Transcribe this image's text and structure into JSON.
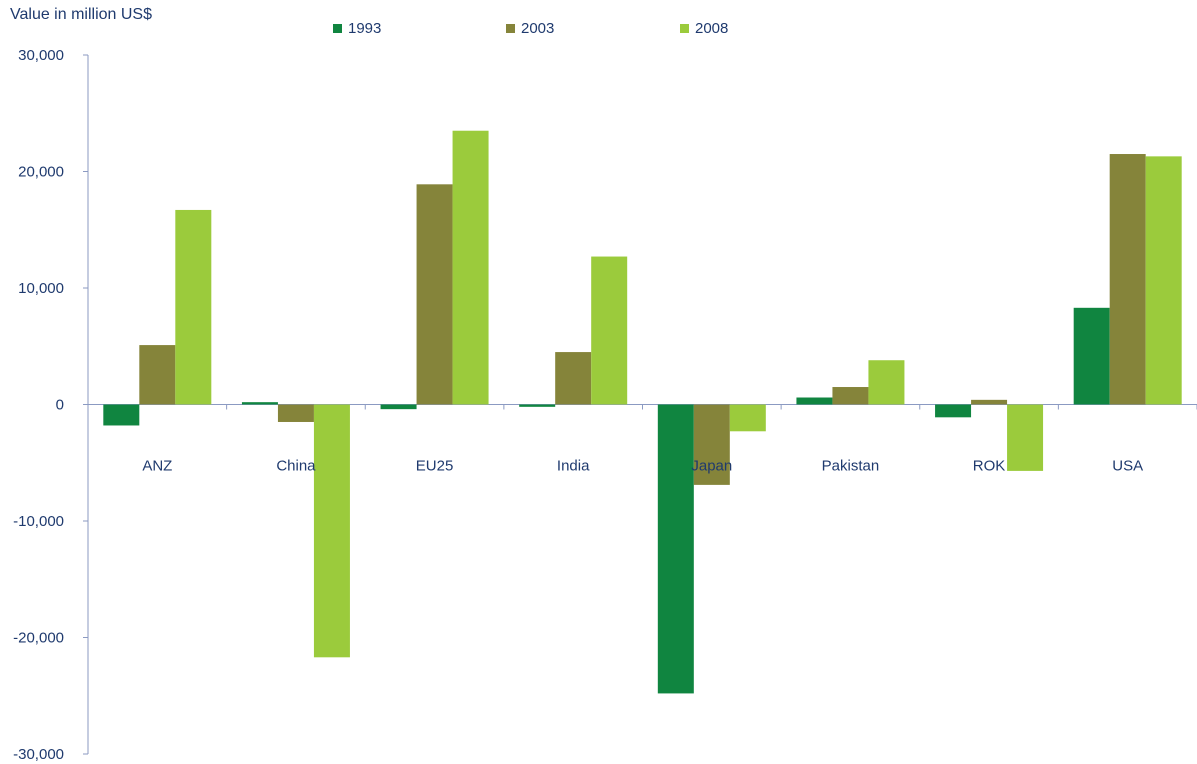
{
  "chart_data": {
    "type": "bar",
    "ylabel": "Value in million US$",
    "categories": [
      "ANZ",
      "China",
      "EU25",
      "India",
      "Japan",
      "Pakistan",
      "ROK",
      "USA"
    ],
    "series": [
      {
        "name": "1993",
        "color": "#108540",
        "values": [
          -1800,
          200,
          -400,
          -200,
          -24800,
          600,
          -1100,
          8300
        ]
      },
      {
        "name": "2003",
        "color": "#85843A",
        "values": [
          5100,
          -1500,
          18900,
          4500,
          -6900,
          1500,
          400,
          21500
        ]
      },
      {
        "name": "2008",
        "color": "#9BCB3C",
        "values": [
          16700,
          -21700,
          23500,
          12700,
          -2300,
          3800,
          -5700,
          21300
        ]
      }
    ],
    "ylim": [
      -30000,
      30000
    ],
    "yticks": [
      {
        "value": 30000,
        "label": "30,000"
      },
      {
        "value": 20000,
        "label": "20,000"
      },
      {
        "value": 10000,
        "label": "10,000"
      },
      {
        "value": 0,
        "label": "0"
      },
      {
        "value": -10000,
        "label": "-10,000"
      },
      {
        "value": -20000,
        "label": "-20,000"
      },
      {
        "value": -30000,
        "label": "-30,000"
      }
    ],
    "grid": false,
    "legend_position": "top"
  }
}
